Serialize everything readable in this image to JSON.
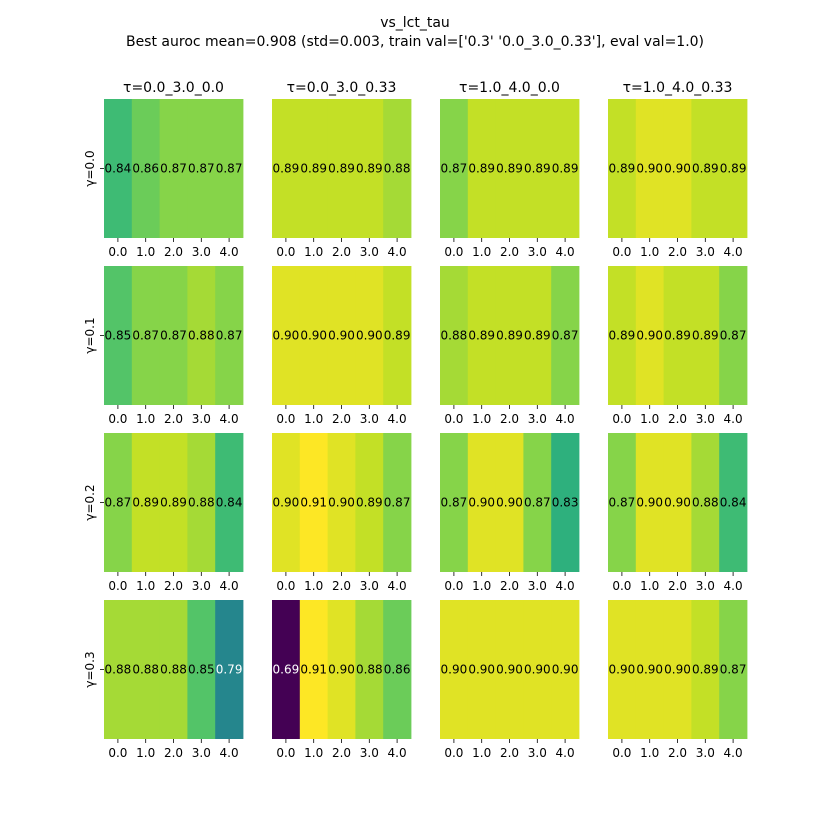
{
  "chart_data": {
    "type": "heatmap",
    "title": "vs_lct_tau",
    "subtitle": "Best auroc mean=0.908 (std=0.003, train val=['0.3' '0.0_3.0_0.33'], eval val=1.0)",
    "column_titles": [
      "τ=0.0_3.0_0.0",
      "τ=0.0_3.0_0.33",
      "τ=1.0_4.0_0.0",
      "τ=1.0_4.0_0.33"
    ],
    "row_labels": [
      "γ=0.0",
      "γ=0.1",
      "γ=0.2",
      "γ=0.3"
    ],
    "x_ticks": [
      "0.0",
      "1.0",
      "2.0",
      "3.0",
      "4.0"
    ],
    "color_range": [
      0.69,
      0.91
    ],
    "colormap": "viridis",
    "panels": [
      [
        {
          "values": [
            0.84,
            0.86,
            0.87,
            0.87,
            0.87
          ],
          "labels": [
            "0.84",
            "0.86",
            "0.87",
            "0.87",
            "0.87"
          ]
        },
        {
          "values": [
            0.89,
            0.89,
            0.89,
            0.89,
            0.88
          ],
          "labels": [
            "0.89",
            "0.89",
            "0.89",
            "0.89",
            "0.88"
          ]
        },
        {
          "values": [
            0.87,
            0.89,
            0.89,
            0.89,
            0.89
          ],
          "labels": [
            "0.87",
            "0.89",
            "0.89",
            "0.89",
            "0.89"
          ]
        },
        {
          "values": [
            0.89,
            0.9,
            0.9,
            0.89,
            0.89
          ],
          "labels": [
            "0.89",
            "0.90",
            "0.90",
            "0.89",
            "0.89"
          ]
        }
      ],
      [
        {
          "values": [
            0.85,
            0.87,
            0.87,
            0.88,
            0.87
          ],
          "labels": [
            "0.85",
            "0.87",
            "0.87",
            "0.88",
            "0.87"
          ]
        },
        {
          "values": [
            0.9,
            0.9,
            0.9,
            0.9,
            0.89
          ],
          "labels": [
            "0.90",
            "0.90",
            "0.90",
            "0.90",
            "0.89"
          ]
        },
        {
          "values": [
            0.88,
            0.89,
            0.89,
            0.89,
            0.87
          ],
          "labels": [
            "0.88",
            "0.89",
            "0.89",
            "0.89",
            "0.87"
          ]
        },
        {
          "values": [
            0.89,
            0.9,
            0.89,
            0.89,
            0.87
          ],
          "labels": [
            "0.89",
            "0.90",
            "0.89",
            "0.89",
            "0.87"
          ]
        }
      ],
      [
        {
          "values": [
            0.87,
            0.89,
            0.89,
            0.88,
            0.84
          ],
          "labels": [
            "0.87",
            "0.89",
            "0.89",
            "0.88",
            "0.84"
          ]
        },
        {
          "values": [
            0.9,
            0.91,
            0.9,
            0.89,
            0.87
          ],
          "labels": [
            "0.90",
            "0.91",
            "0.90",
            "0.89",
            "0.87"
          ]
        },
        {
          "values": [
            0.87,
            0.9,
            0.9,
            0.87,
            0.83
          ],
          "labels": [
            "0.87",
            "0.90",
            "0.90",
            "0.87",
            "0.83"
          ]
        },
        {
          "values": [
            0.87,
            0.9,
            0.9,
            0.88,
            0.84
          ],
          "labels": [
            "0.87",
            "0.90",
            "0.90",
            "0.88",
            "0.84"
          ]
        }
      ],
      [
        {
          "values": [
            0.88,
            0.88,
            0.88,
            0.85,
            0.79
          ],
          "labels": [
            "0.88",
            "0.88",
            "0.88",
            "0.85",
            "0.79"
          ]
        },
        {
          "values": [
            0.69,
            0.91,
            0.9,
            0.88,
            0.86
          ],
          "labels": [
            "0.69",
            "0.91",
            "0.90",
            "0.88",
            "0.86"
          ]
        },
        {
          "values": [
            0.9,
            0.9,
            0.9,
            0.9,
            0.9
          ],
          "labels": [
            "0.90",
            "0.90",
            "0.90",
            "0.90",
            "0.90"
          ]
        },
        {
          "values": [
            0.9,
            0.9,
            0.9,
            0.89,
            0.87
          ],
          "labels": [
            "0.90",
            "0.90",
            "0.90",
            "0.89",
            "0.87"
          ]
        }
      ]
    ]
  }
}
